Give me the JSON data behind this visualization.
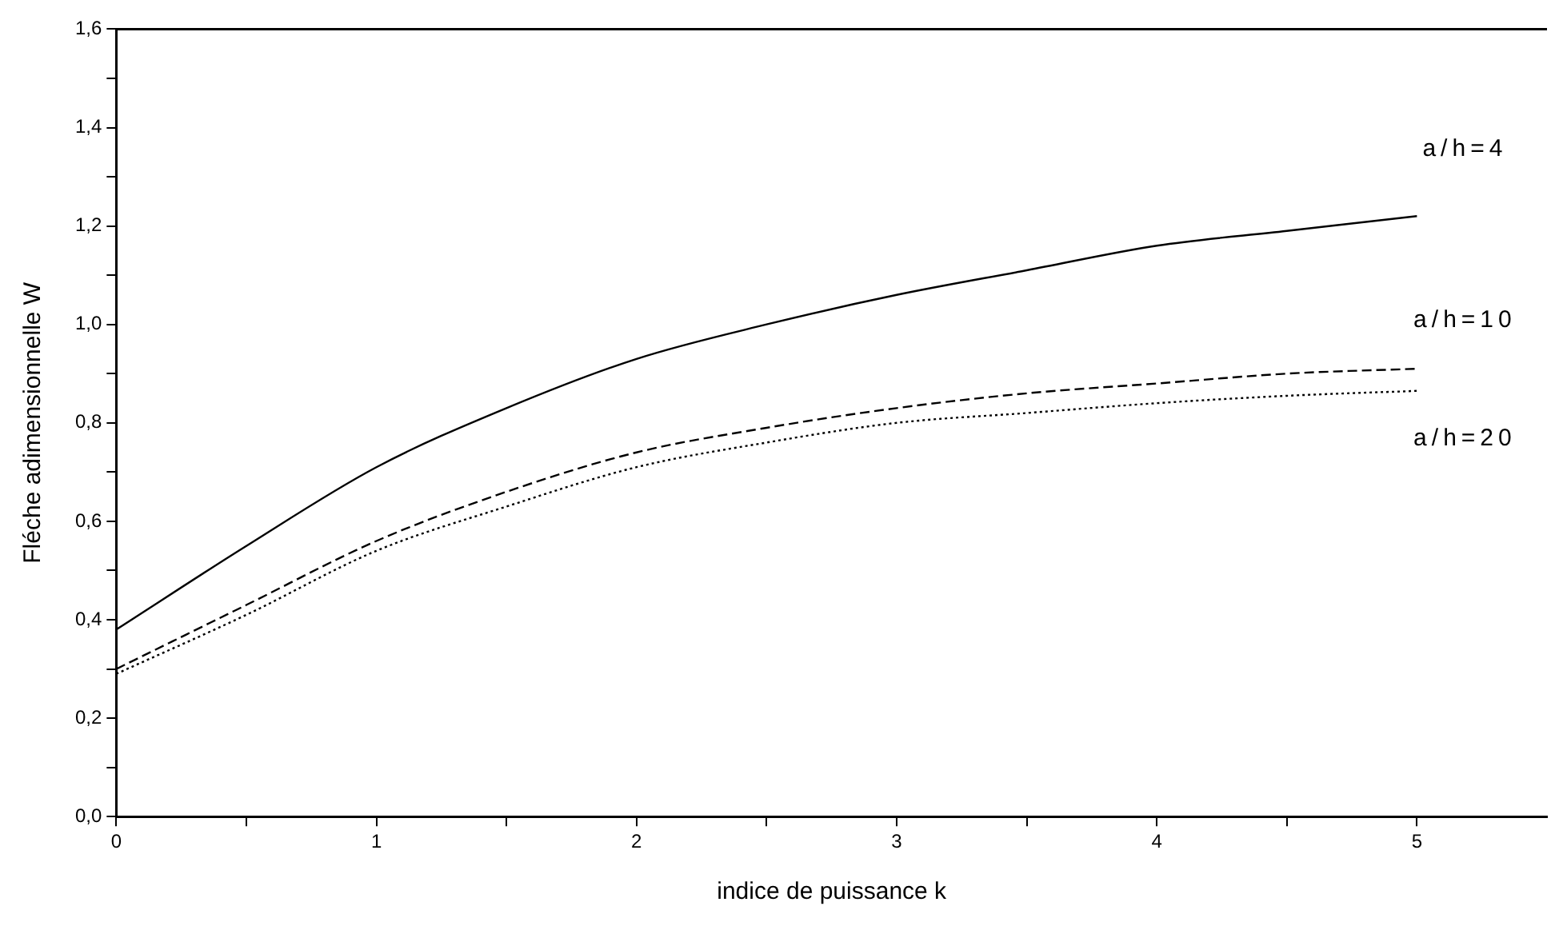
{
  "chart_data": {
    "type": "line",
    "xlabel": "indice de puissance k",
    "ylabel": "Fléche adimensionnelle W",
    "x": [
      0,
      0.5,
      1,
      1.5,
      2,
      2.5,
      3,
      3.5,
      4,
      4.5,
      5
    ],
    "series": [
      {
        "name": "a/h=4",
        "color": "#000000",
        "line_style": "solid",
        "values": [
          0.38,
          0.55,
          0.71,
          0.83,
          0.93,
          1.0,
          1.06,
          1.11,
          1.16,
          1.19,
          1.22
        ]
      },
      {
        "name": "a/h=10",
        "color": "#000000",
        "line_style": "dashed",
        "values": [
          0.3,
          0.43,
          0.56,
          0.66,
          0.74,
          0.79,
          0.83,
          0.86,
          0.88,
          0.9,
          0.91
        ]
      },
      {
        "name": "a/h=20",
        "color": "#000000",
        "line_style": "dotted",
        "values": [
          0.29,
          0.41,
          0.54,
          0.63,
          0.71,
          0.76,
          0.8,
          0.82,
          0.84,
          0.855,
          0.865
        ]
      }
    ],
    "xlim": [
      0,
      5.5
    ],
    "xticks": [
      0,
      {
        "value": 0.5,
        "label": null
      },
      1,
      {
        "value": 1.5,
        "label": null
      },
      2,
      {
        "value": 2.5,
        "label": null
      },
      3,
      {
        "value": 3.5,
        "label": null
      },
      4,
      {
        "value": 4.5,
        "label": null
      },
      5
    ],
    "ylim": [
      0,
      1.6
    ],
    "yticks": [
      {
        "value": 0,
        "label": "0,0"
      },
      {
        "value": 0.1,
        "label": null
      },
      {
        "value": 0.2,
        "label": "0,2"
      },
      {
        "value": 0.3,
        "label": null
      },
      {
        "value": 0.4,
        "label": "0,4"
      },
      {
        "value": 0.5,
        "label": null
      },
      {
        "value": 0.6,
        "label": "0,6"
      },
      {
        "value": 0.7,
        "label": null
      },
      {
        "value": 0.8,
        "label": "0,8"
      },
      {
        "value": 0.9,
        "label": null
      },
      {
        "value": 1.0,
        "label": "1,0"
      },
      {
        "value": 1.1,
        "label": null
      },
      {
        "value": 1.2,
        "label": "1,2"
      },
      {
        "value": 1.3,
        "label": null
      },
      {
        "value": 1.4,
        "label": "1,4"
      },
      {
        "value": 1.5,
        "label": null
      },
      {
        "value": 1.6,
        "label": "1,6"
      }
    ],
    "grid": false,
    "legend": false,
    "marker": "none"
  }
}
